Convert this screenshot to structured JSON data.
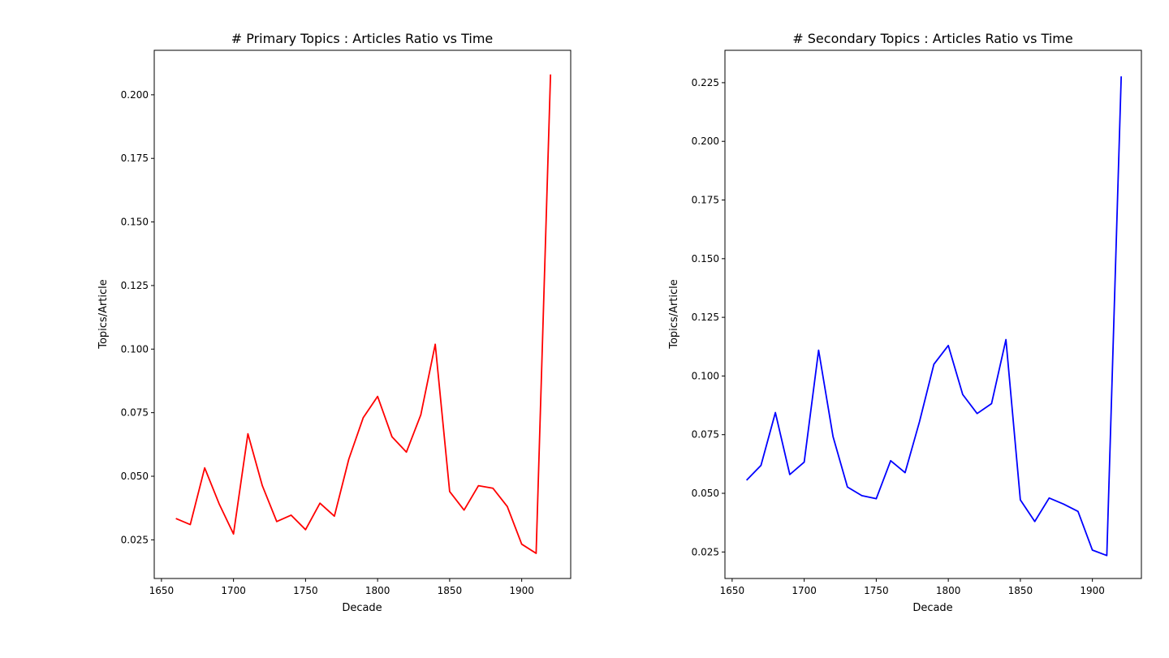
{
  "chart_data": [
    {
      "type": "line",
      "title": "# Primary Topics : Articles Ratio vs Time",
      "xlabel": "Decade",
      "ylabel": "Topics/Article",
      "xlim": [
        1645,
        1934
      ],
      "ylim": [
        0.0098,
        0.2175
      ],
      "xticks": [
        1650,
        1700,
        1750,
        1800,
        1850,
        1900
      ],
      "yticks": [
        0.025,
        0.05,
        0.075,
        0.1,
        0.125,
        0.15,
        0.175,
        0.2
      ],
      "grid": false,
      "color": "#ff0000",
      "series": [
        {
          "x": [
            1660,
            1670,
            1680,
            1690,
            1700,
            1710,
            1720,
            1730,
            1740,
            1750,
            1760,
            1770,
            1780,
            1790,
            1800,
            1810,
            1820,
            1830,
            1840,
            1850,
            1860,
            1870,
            1880,
            1890,
            1900,
            1910,
            1920
          ],
          "values": [
            0.0334,
            0.031,
            0.0533,
            0.0392,
            0.0273,
            0.0667,
            0.0463,
            0.0322,
            0.0347,
            0.029,
            0.0394,
            0.0343,
            0.0567,
            0.073,
            0.0814,
            0.0655,
            0.0595,
            0.0742,
            0.1019,
            0.044,
            0.0367,
            0.0463,
            0.0453,
            0.0381,
            0.0233,
            0.0197,
            0.208
          ]
        }
      ]
    },
    {
      "type": "line",
      "title": "# Secondary Topics : Articles Ratio vs Time",
      "xlabel": "Decade",
      "ylabel": "Topics/Article",
      "xlim": [
        1645,
        1934
      ],
      "ylim": [
        0.0137,
        0.2388
      ],
      "xticks": [
        1650,
        1700,
        1750,
        1800,
        1850,
        1900
      ],
      "yticks": [
        0.025,
        0.05,
        0.075,
        0.1,
        0.125,
        0.15,
        0.175,
        0.2,
        0.225
      ],
      "grid": false,
      "color": "#0000ff",
      "series": [
        {
          "x": [
            1660,
            1670,
            1680,
            1690,
            1700,
            1710,
            1720,
            1730,
            1740,
            1750,
            1760,
            1770,
            1780,
            1790,
            1800,
            1810,
            1820,
            1830,
            1840,
            1850,
            1860,
            1870,
            1880,
            1890,
            1900,
            1910,
            1920
          ],
          "values": [
            0.0556,
            0.0619,
            0.0844,
            0.058,
            0.0633,
            0.111,
            0.0742,
            0.0527,
            0.049,
            0.0477,
            0.0639,
            0.0588,
            0.0805,
            0.105,
            0.113,
            0.0921,
            0.084,
            0.0882,
            0.1155,
            0.0472,
            0.038,
            0.048,
            0.0454,
            0.0423,
            0.0258,
            0.0235,
            0.2277
          ]
        }
      ]
    }
  ]
}
